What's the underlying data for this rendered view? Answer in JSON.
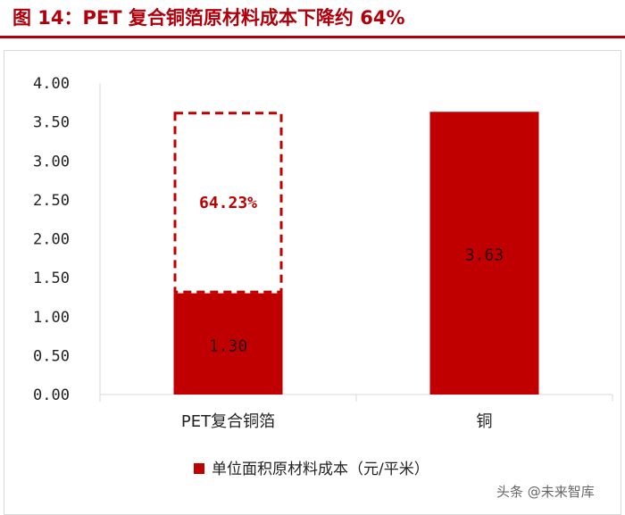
{
  "title": "图 14：PET 复合铜箔原材料成本下降约 64%",
  "colors": {
    "accent": "#b0000b",
    "bar": "#c00000",
    "axis": "#d9d9d9"
  },
  "watermark": "头条 @未来智库",
  "chart_data": {
    "type": "bar",
    "categories": [
      "PET复合铜箔",
      "铜"
    ],
    "series": [
      {
        "name": "单位面积原材料成本（元/平米）",
        "values": [
          1.3,
          3.63
        ],
        "labels": [
          "1.30",
          "3.63"
        ]
      }
    ],
    "reduction": {
      "category": "PET复合铜箔",
      "from": 1.3,
      "to": 3.63,
      "label": "64.23%",
      "style": "dashed-outline"
    },
    "ylim": [
      0,
      4
    ],
    "yticks": [
      "0.00",
      "0.50",
      "1.00",
      "1.50",
      "2.00",
      "2.50",
      "3.00",
      "3.50",
      "4.00"
    ],
    "legend_position": "bottom",
    "grid": false
  }
}
